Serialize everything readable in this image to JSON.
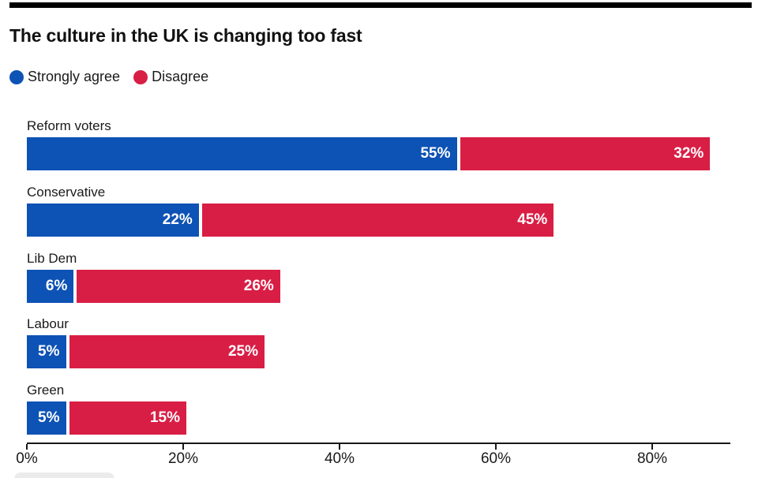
{
  "title": "The culture in the UK is changing too fast",
  "colors": {
    "agree": "#0d52b5",
    "disagree": "#d91e45",
    "axis": "#18181b",
    "top_bar": "#000000"
  },
  "legend": [
    {
      "label": "Strongly agree",
      "color_key": "agree"
    },
    {
      "label": "Disagree",
      "color_key": "disagree"
    }
  ],
  "chart_data": {
    "type": "bar",
    "orientation": "horizontal",
    "stacked": true,
    "title": "The culture in the UK is changing too fast",
    "categories": [
      "Reform voters",
      "Conservative",
      "Lib Dem",
      "Labour",
      "Green"
    ],
    "series": [
      {
        "name": "Strongly agree",
        "color_key": "agree",
        "values": [
          55,
          22,
          6,
          5,
          5
        ]
      },
      {
        "name": "Disagree",
        "color_key": "disagree",
        "values": [
          32,
          45,
          26,
          25,
          15
        ]
      }
    ],
    "value_suffix": "%",
    "data_labels": true,
    "x_tick_labels": [
      "0%",
      "20%",
      "40%",
      "60%",
      "80%"
    ],
    "x_tick_values": [
      0,
      20,
      40,
      60,
      80
    ],
    "xlim": [
      0,
      90
    ],
    "grid": false,
    "legend_position": "top"
  }
}
